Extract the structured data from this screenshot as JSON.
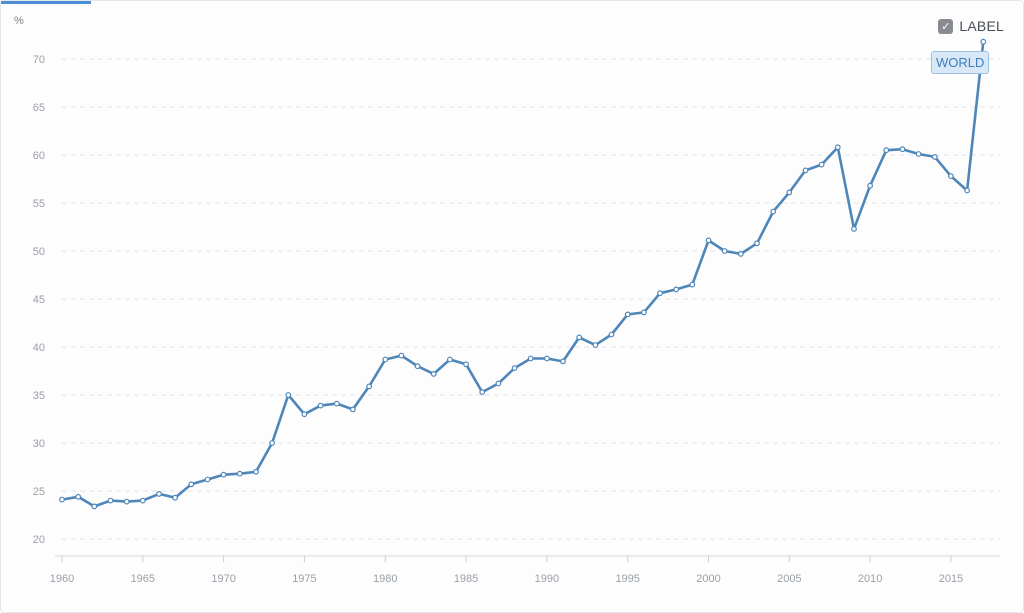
{
  "controls": {
    "label_toggle_text": "LABEL",
    "label_toggle_checked": true,
    "checkbox_glyph": "✓",
    "checkbox_icon": "check-icon"
  },
  "colors": {
    "series": "#4e86b8",
    "grid": "#dfe3e8",
    "accent": "#4a90d9"
  },
  "chart_data": {
    "type": "line",
    "ylabel": "%",
    "ylim": [
      18,
      73
    ],
    "xlim": [
      1960,
      2018
    ],
    "yticks": [
      20,
      25,
      30,
      35,
      40,
      45,
      50,
      55,
      60,
      65,
      70
    ],
    "xticks": [
      1960,
      1965,
      1970,
      1975,
      1980,
      1985,
      1990,
      1995,
      2000,
      2005,
      2010,
      2015
    ],
    "grid": true,
    "legend": "top-right",
    "series": [
      {
        "name": "WORLD",
        "x": [
          1960,
          1961,
          1962,
          1963,
          1964,
          1965,
          1966,
          1967,
          1968,
          1969,
          1970,
          1971,
          1972,
          1973,
          1974,
          1975,
          1976,
          1977,
          1978,
          1979,
          1980,
          1981,
          1982,
          1983,
          1984,
          1985,
          1986,
          1987,
          1988,
          1989,
          1990,
          1991,
          1992,
          1993,
          1994,
          1995,
          1996,
          1997,
          1998,
          1999,
          2000,
          2001,
          2002,
          2003,
          2004,
          2005,
          2006,
          2007,
          2008,
          2009,
          2010,
          2011,
          2012,
          2013,
          2014,
          2015,
          2016,
          2017
        ],
        "values": [
          24.1,
          24.4,
          23.4,
          24.0,
          23.9,
          24.0,
          24.7,
          24.3,
          25.7,
          26.2,
          26.7,
          26.8,
          27.0,
          30.0,
          35.0,
          33.0,
          33.9,
          34.1,
          33.5,
          35.9,
          38.7,
          39.1,
          38.0,
          37.2,
          38.7,
          38.2,
          35.3,
          36.2,
          37.8,
          38.8,
          38.8,
          38.5,
          41.0,
          40.2,
          41.3,
          43.4,
          43.6,
          45.6,
          46.0,
          46.5,
          51.1,
          50.0,
          49.7,
          50.8,
          54.1,
          56.1,
          58.4,
          59.0,
          60.8,
          52.3,
          56.8,
          60.5,
          60.6,
          60.1,
          59.8,
          57.8,
          56.3,
          71.8
        ]
      }
    ]
  }
}
